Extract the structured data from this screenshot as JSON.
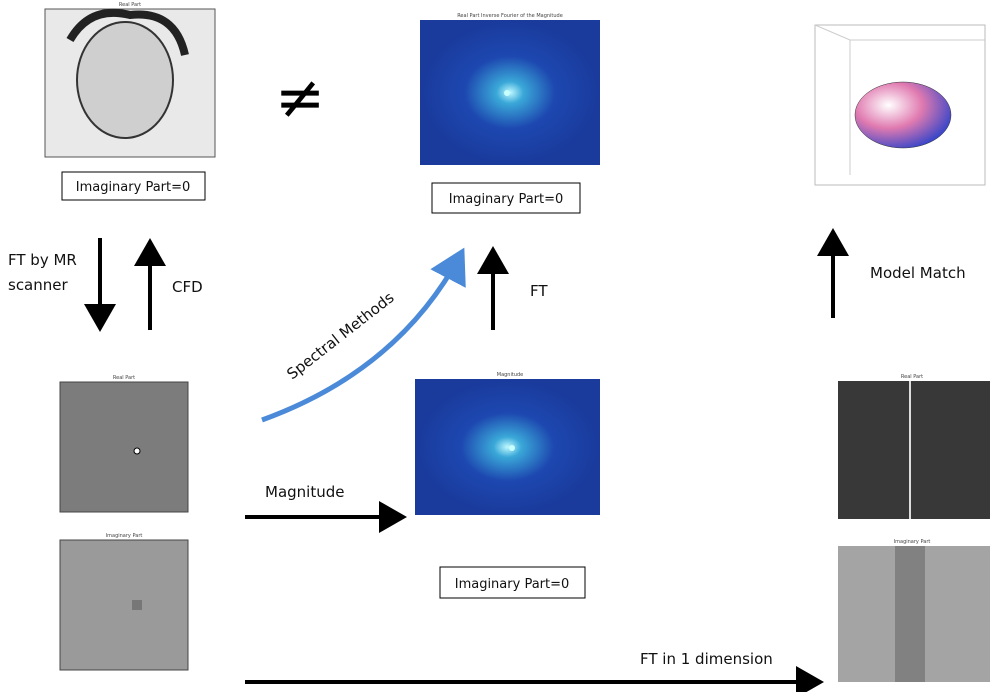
{
  "symbols": {
    "not_equal": "≠"
  },
  "panels": {
    "top_left": {
      "title": "Real Part",
      "caption": "Imaginary Part=0"
    },
    "top_middle": {
      "title": "Real Part Inverse Fourier of the Magnitude",
      "caption": "Imaginary Part=0"
    },
    "middle_left": {
      "title": "Real Part"
    },
    "middle_center": {
      "title": "Magnitude",
      "caption": "Imaginary Part=0"
    },
    "middle_right": {
      "title": "Real Part"
    },
    "bottom_left": {
      "title": "Imaginary Part"
    },
    "bottom_right": {
      "title": "Imaginary Part"
    }
  },
  "arrows": {
    "ft_by_mr": [
      "FT by MR",
      "scanner"
    ],
    "cfd": "CFD",
    "spectral": "Spectral Methods",
    "ft": "FT",
    "model_match": "Model Match",
    "magnitude": "Magnitude",
    "ft_1d": "FT in 1 dimension"
  }
}
